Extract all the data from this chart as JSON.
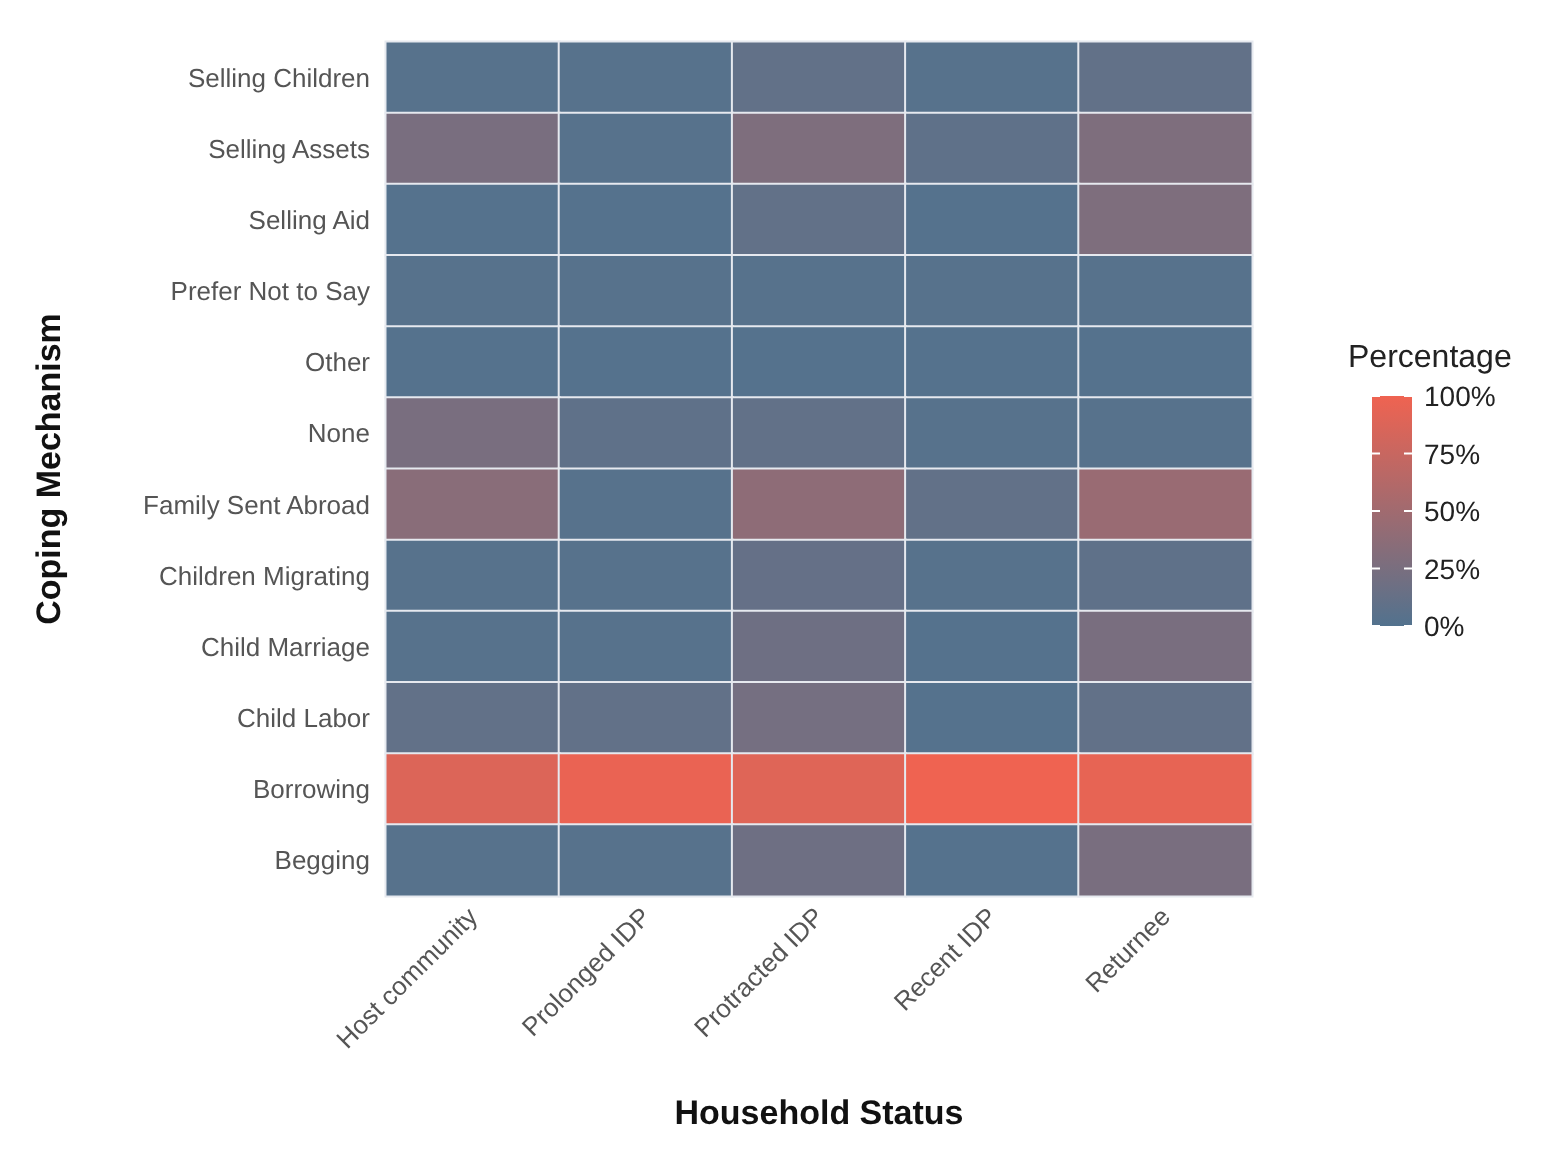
{
  "chart_data": {
    "type": "heatmap",
    "xlabel": "Household Status",
    "ylabel": "Coping Mechanism",
    "clabel": "Percentage",
    "categories": [
      "Host community",
      "Prolonged IDP",
      "Protracted IDP",
      "Recent IDP",
      "Returnee"
    ],
    "y_categories": [
      "Selling Children",
      "Selling Assets",
      "Selling Aid",
      "Prefer Not to Say",
      "Other",
      "None",
      "Family Sent Abroad",
      "Children Migrating",
      "Child Marriage",
      "Child Labor",
      "Borrowing",
      "Begging"
    ],
    "cells": [
      [
        3,
        3,
        10,
        3,
        10
      ],
      [
        25,
        3,
        28,
        8,
        28
      ],
      [
        2,
        2,
        10,
        2,
        28
      ],
      [
        3,
        3,
        3,
        3,
        3
      ],
      [
        2,
        2,
        2,
        2,
        2
      ],
      [
        25,
        8,
        10,
        3,
        3
      ],
      [
        35,
        3,
        38,
        10,
        45
      ],
      [
        3,
        3,
        12,
        3,
        8
      ],
      [
        3,
        3,
        18,
        2,
        25
      ],
      [
        10,
        10,
        22,
        2,
        10
      ],
      [
        88,
        97,
        90,
        100,
        95
      ],
      [
        3,
        3,
        18,
        2,
        25
      ]
    ],
    "clim": [
      0,
      100
    ],
    "cticks": [
      {
        "value": 0,
        "label": "0%"
      },
      {
        "value": 25,
        "label": "25%"
      },
      {
        "value": 50,
        "label": "50%"
      },
      {
        "value": 75,
        "label": "75%"
      },
      {
        "value": 100,
        "label": "100%"
      }
    ],
    "colors": [
      "#52728e",
      "#ef6351"
    ]
  }
}
